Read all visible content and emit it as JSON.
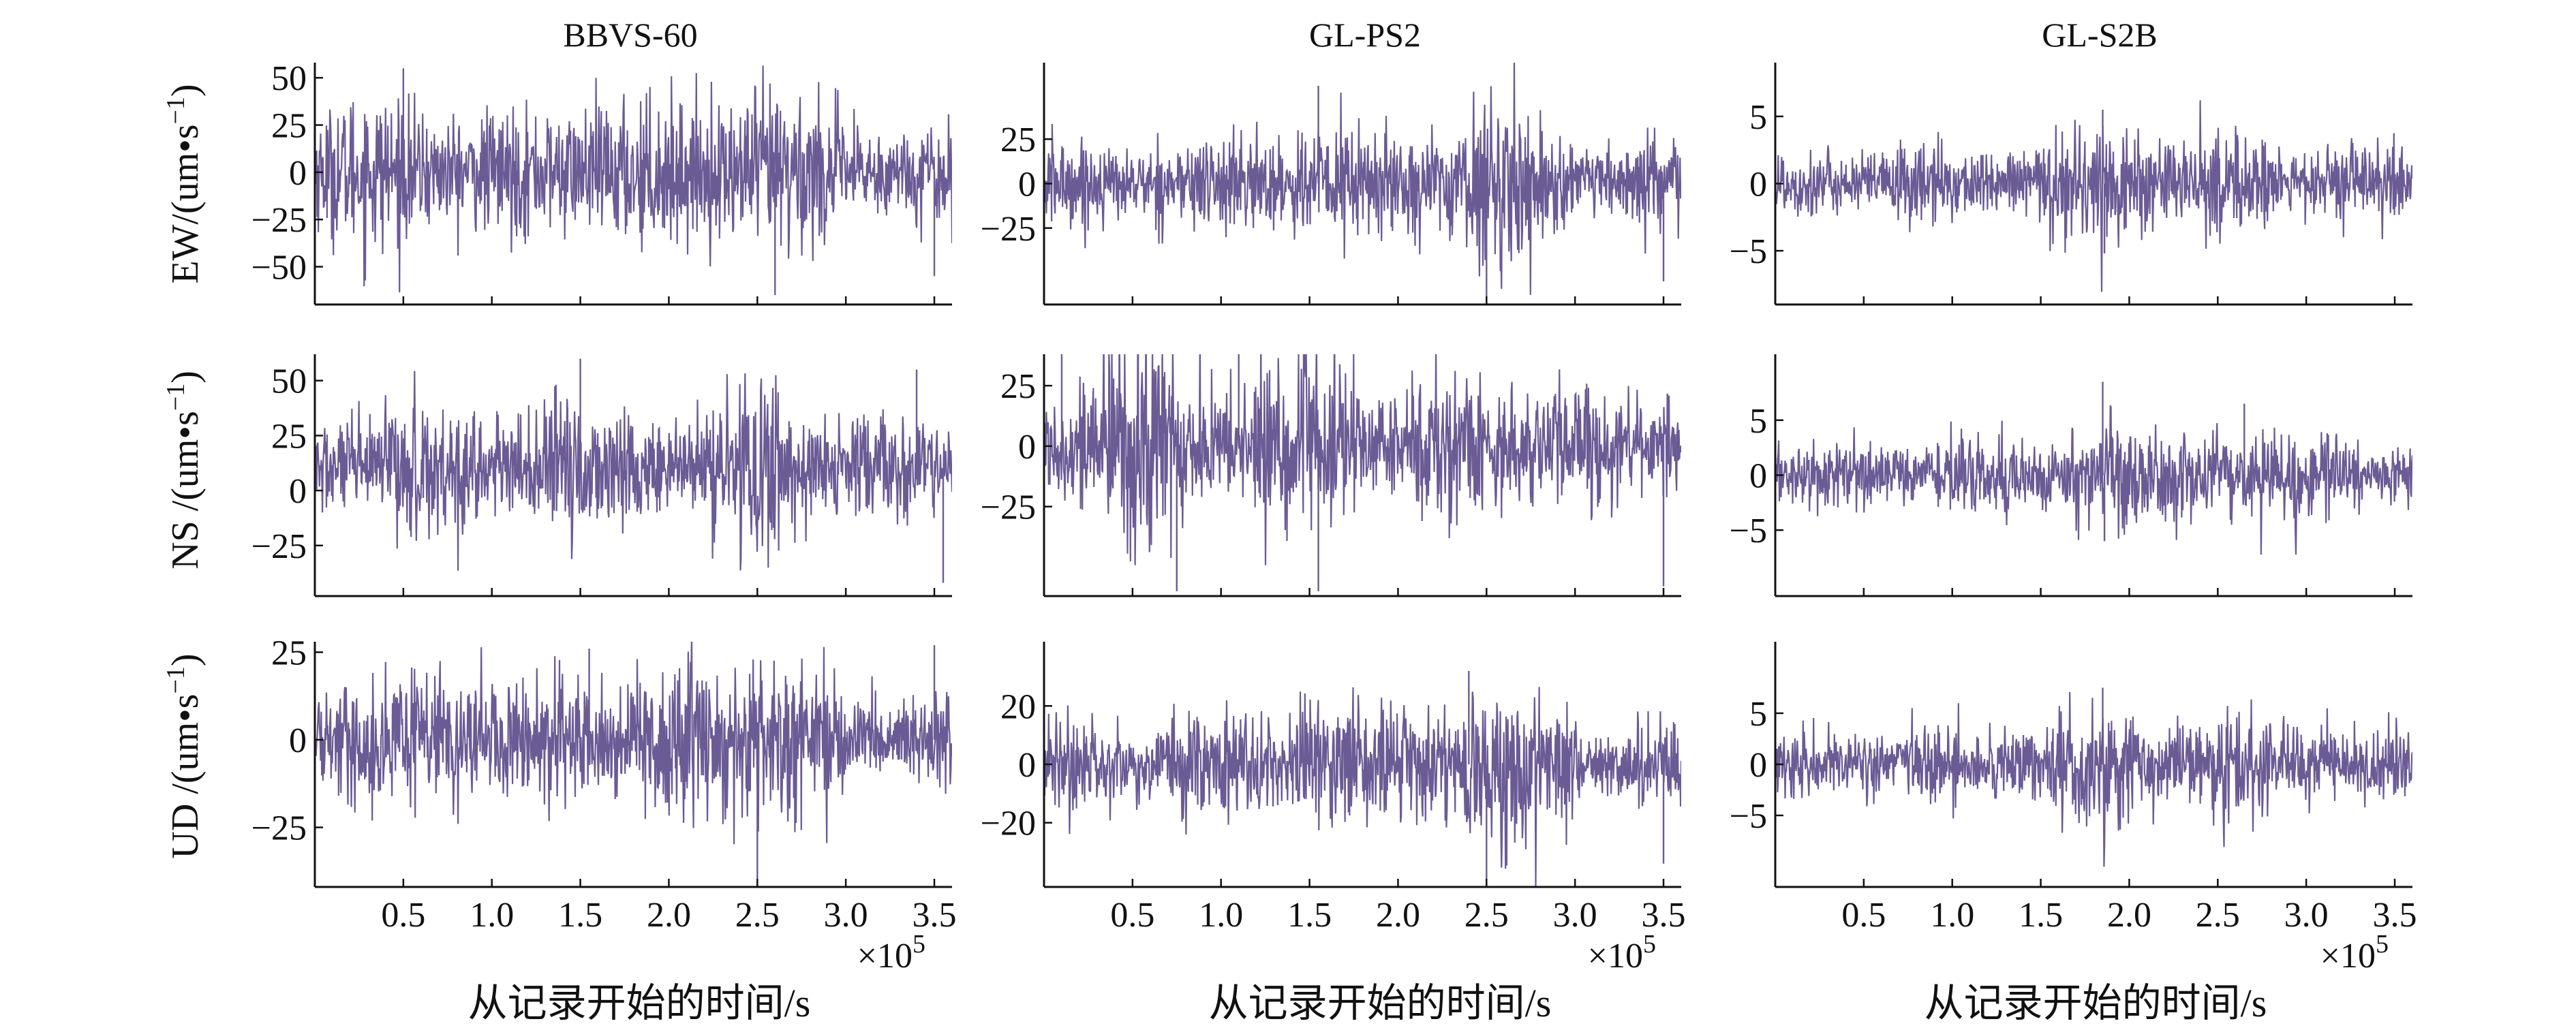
{
  "figure": {
    "columns": [
      "BBVS-60",
      "GL-PS2",
      "GL-S2B"
    ],
    "row_labels": [
      {
        "prefix": "EW/(um",
        "dot": "•",
        "mid": "s",
        "sup": "−1",
        "suffix": ")"
      },
      {
        "prefix": "NS /(um",
        "dot": "•",
        "mid": "s",
        "sup": "−1",
        "suffix": ")"
      },
      {
        "prefix": "UD /(um",
        "dot": "•",
        "mid": "s",
        "sup": "−1",
        "suffix": ")"
      }
    ],
    "x_label": "从记录开始的时间/s",
    "x_exponent": {
      "base": "×10",
      "exp": "5"
    }
  },
  "chart_data": {
    "type": "line",
    "layout": "3x3 grid of time-series panels",
    "line_color": "#6b5b95",
    "x_ticks": [
      0.5,
      1.0,
      1.5,
      2.0,
      2.5,
      3.0,
      3.5
    ],
    "x_tick_labels": [
      "0.5",
      "1.0",
      "1.5",
      "2.0",
      "2.5",
      "3.0",
      "3.5"
    ],
    "x_multiplier": "×10^5",
    "xlim": [
      0,
      3.6
    ],
    "panels": [
      {
        "row": "EW",
        "column": "BBVS-60",
        "ylim": [
          -70,
          58
        ],
        "yticks": [
          50,
          25,
          0,
          -25,
          -50
        ],
        "ytick_labels": [
          "50",
          "25",
          "0",
          "−25",
          "−50"
        ],
        "amplitude": 28,
        "bursts": [
          [
            1.6,
            1.5
          ],
          [
            2.5,
            1.8
          ],
          [
            0.45,
            1.5
          ]
        ],
        "spikes": [
          [
            2.6,
            -65
          ],
          [
            3.5,
            -55
          ],
          [
            0.5,
            55
          ]
        ]
      },
      {
        "row": "EW",
        "column": "GL-PS2",
        "ylim": [
          -68,
          68
        ],
        "yticks": [
          25,
          0,
          -25
        ],
        "ytick_labels": [
          "25",
          "0",
          "−25"
        ],
        "amplitude": 24,
        "bursts": [
          [
            1.55,
            1.6
          ],
          [
            2.5,
            1.9
          ]
        ],
        "spikes": [
          [
            2.5,
            -66
          ],
          [
            3.5,
            -55
          ],
          [
            1.55,
            55
          ]
        ]
      },
      {
        "row": "EW",
        "column": "GL-S2B",
        "ylim": [
          -9,
          9
        ],
        "yticks": [
          5,
          0,
          -5
        ],
        "ytick_labels": [
          "5",
          "0",
          "−5"
        ],
        "amplitude": 2.8,
        "bursts": [
          [
            1.9,
            1.8
          ],
          [
            2.6,
            1.3
          ]
        ],
        "spikes": [
          [
            1.85,
            5.5
          ],
          [
            1.86,
            -5.2
          ]
        ]
      },
      {
        "row": "NS",
        "column": "BBVS-60",
        "ylim": [
          -48,
          62
        ],
        "yticks": [
          50,
          25,
          0,
          -25
        ],
        "ytick_labels": [
          "50",
          "25",
          "0",
          "−25"
        ],
        "y_center": 10,
        "amplitude": 22,
        "bursts": [
          [
            1.5,
            1.5
          ],
          [
            2.5,
            1.8
          ],
          [
            0.5,
            1.5
          ]
        ],
        "spikes": [
          [
            1.5,
            60
          ],
          [
            3.55,
            -42
          ],
          [
            3.4,
            55
          ]
        ]
      },
      {
        "row": "NS",
        "column": "GL-PS2",
        "ylim": [
          -62,
          38
        ],
        "yticks": [
          25,
          0,
          -25
        ],
        "ytick_labels": [
          "25",
          "0",
          "−25"
        ],
        "amplitude": 22,
        "bursts": [
          [
            0.6,
            2.2
          ],
          [
            1.5,
            1.8
          ],
          [
            2.5,
            1.5
          ]
        ],
        "spikes": [
          [
            0.1,
            38
          ],
          [
            0.75,
            -60
          ],
          [
            1.1,
            38
          ],
          [
            1.55,
            -60
          ],
          [
            3.5,
            -58
          ]
        ]
      },
      {
        "row": "NS",
        "column": "GL-S2B",
        "ylim": [
          -11,
          11
        ],
        "yticks": [
          5,
          0,
          -5
        ],
        "ytick_labels": [
          "5",
          "0",
          "−5"
        ],
        "amplitude": 3.2,
        "bursts": [
          [
            2.6,
            1.5
          ],
          [
            1.9,
            1.5
          ]
        ],
        "spikes": [
          [
            1.85,
            8.5
          ],
          [
            1.86,
            -6
          ],
          [
            2.65,
            6.5
          ]
        ]
      },
      {
        "row": "UD",
        "column": "BBVS-60",
        "ylim": [
          -42,
          28
        ],
        "yticks": [
          25,
          0,
          -25
        ],
        "ytick_labels": [
          "25",
          "0",
          "−25"
        ],
        "amplitude": 14,
        "bursts": [
          [
            1.55,
            1.6
          ],
          [
            2.45,
            2.0
          ],
          [
            0.5,
            1.4
          ]
        ],
        "spikes": [
          [
            2.5,
            -42
          ],
          [
            3.5,
            27
          ],
          [
            1.55,
            26
          ]
        ]
      },
      {
        "row": "UD",
        "column": "GL-PS2",
        "ylim": [
          -42,
          42
        ],
        "yticks": [
          20,
          0,
          -20
        ],
        "ytick_labels": [
          "20",
          "0",
          "−20"
        ],
        "amplitude": 16,
        "bursts": [
          [
            1.6,
            1.6
          ],
          [
            2.5,
            2.0
          ]
        ],
        "spikes": [
          [
            2.5,
            -42
          ],
          [
            3.5,
            -34
          ],
          [
            2.4,
            32
          ]
        ]
      },
      {
        "row": "UD",
        "column": "GL-S2B",
        "ylim": [
          -12,
          12
        ],
        "yticks": [
          5,
          0,
          -5
        ],
        "ytick_labels": [
          "5",
          "0",
          "−5"
        ],
        "amplitude": 3.6,
        "bursts": [
          [
            1.85,
            1.6
          ],
          [
            2.6,
            1.5
          ]
        ],
        "spikes": [
          [
            1.85,
            7.5
          ],
          [
            1.86,
            -7
          ]
        ]
      }
    ]
  }
}
